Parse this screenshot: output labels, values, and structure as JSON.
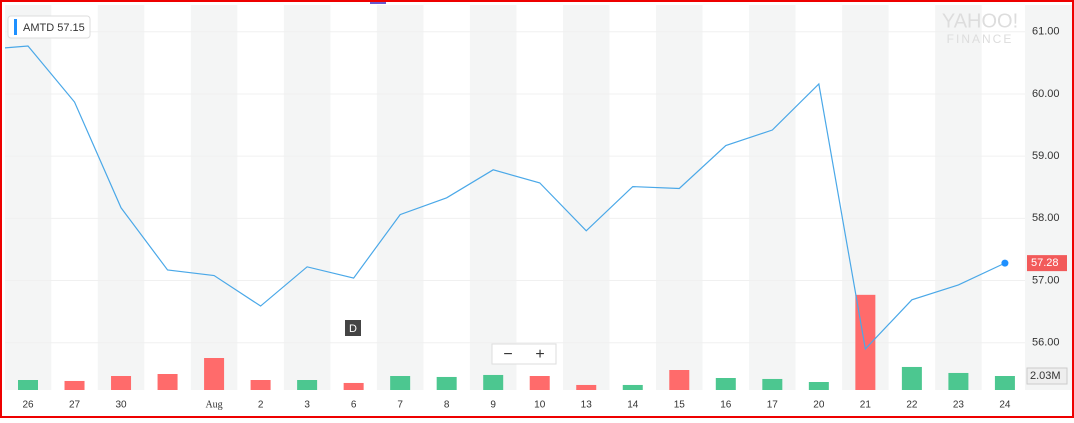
{
  "chart_data": {
    "type": "line",
    "categories": [
      null,
      "26",
      "27",
      "30",
      null,
      "Aug",
      "2",
      "3",
      "6",
      "7",
      "8",
      "9",
      "10",
      "13",
      "14",
      "15",
      "16",
      "17",
      "20",
      "21",
      "22",
      "23",
      "24"
    ],
    "series": [
      {
        "name": "AMTD",
        "color": "#4aa8e8",
        "values": [
          60.71,
          60.77,
          59.87,
          58.17,
          57.17,
          57.08,
          56.59,
          57.22,
          57.04,
          58.06,
          58.33,
          58.78,
          58.57,
          57.8,
          58.51,
          58.48,
          59.17,
          59.42,
          60.16,
          55.9,
          56.69,
          56.93,
          57.28
        ]
      }
    ],
    "legend_value": 57.15,
    "current_color": "#f25a5a",
    "ylim": [
      55.24,
      61.43
    ],
    "yticks": [
      {
        "value": 56,
        "label": "56.00"
      },
      {
        "value": 57,
        "label": "57.00"
      },
      {
        "value": 58,
        "label": "58.00"
      },
      {
        "value": 59,
        "label": "59.00"
      },
      {
        "value": 60,
        "label": "60.00"
      },
      {
        "value": 61,
        "label": "61.00"
      }
    ],
    "grid": true,
    "volume": {
      "values": [
        null,
        1.45,
        1.31,
        2.03,
        2.32,
        4.64,
        1.45,
        1.45,
        1.02,
        2.03,
        1.89,
        2.18,
        2.03,
        0.73,
        0.73,
        2.9,
        1.74,
        1.6,
        1.16,
        13.8,
        3.34,
        2.47,
        2.03
      ],
      "value_labels": [
        null,
        null,
        null,
        null,
        null,
        null,
        null,
        null,
        null,
        null,
        null,
        null,
        null,
        null,
        null,
        null,
        null,
        null,
        null,
        null,
        null,
        null,
        "2.03M"
      ],
      "colors": [
        null,
        "#4cc790",
        "#ff6b6b",
        "#ff6b6b",
        "#ff6b6b",
        "#ff6b6b",
        "#ff6b6b",
        "#4cc790",
        "#ff6b6b",
        "#4cc790",
        "#4cc790",
        "#4cc790",
        "#ff6b6b",
        "#ff6b6b",
        "#4cc790",
        "#ff6b6b",
        "#4cc790",
        "#4cc790",
        "#4cc790",
        "#ff6b6b",
        "#4cc790",
        "#4cc790",
        "#4cc790"
      ],
      "ylim": [
        0,
        14.5
      ]
    },
    "event_marker": "D",
    "zoom": [
      "−",
      "+"
    ],
    "watermark": [
      "YAHOO!",
      "FINANCE"
    ]
  }
}
